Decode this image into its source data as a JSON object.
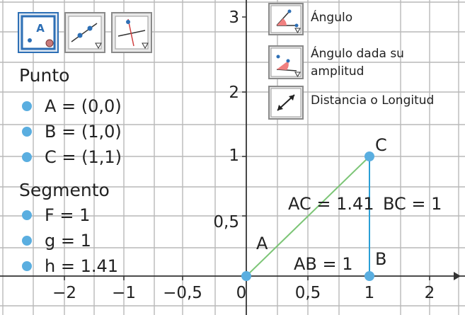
{
  "algebra": {
    "groups": [
      {
        "title": "Punto",
        "items": [
          "A = (0,0)",
          "B = (1,0)",
          "C = (1,1)"
        ]
      },
      {
        "title": "Segmento",
        "items": [
          "F = 1",
          "g = 1",
          "h = 1.41"
        ]
      }
    ]
  },
  "toolbar": {
    "tools": [
      {
        "name": "new-point-tool",
        "icon": "point-A-icon",
        "label": "A",
        "active": true
      },
      {
        "name": "line-tool",
        "icon": "line-through-points-icon",
        "active": false
      },
      {
        "name": "perpendicular-tool",
        "icon": "perpendicular-line-icon",
        "active": false
      }
    ]
  },
  "measure_menu": {
    "items": [
      {
        "name": "angle-tool",
        "icon": "angle-icon",
        "label": "Ángulo"
      },
      {
        "name": "angle-given-size-tool",
        "icon": "angle-given-size-icon",
        "label_lines": [
          "Ángulo dada su",
          "amplitud"
        ]
      },
      {
        "name": "distance-tool",
        "icon": "distance-icon",
        "label": "Distancia o Longitud"
      }
    ]
  },
  "chart_data": {
    "type": "scatter",
    "x_ticks": [
      "−2",
      "−1",
      "−0,5",
      "0",
      "0,5",
      "1",
      "2"
    ],
    "y_ticks": [
      "0,5",
      "1",
      "2",
      "3"
    ],
    "points": [
      {
        "label": "A",
        "x": 0,
        "y": 0
      },
      {
        "label": "B",
        "x": 1,
        "y": 0
      },
      {
        "label": "C",
        "x": 1,
        "y": 1
      }
    ],
    "segments": [
      {
        "from": "A",
        "to": "C",
        "color": "#7cc576"
      },
      {
        "from": "B",
        "to": "C",
        "color": "#2b9fd6"
      }
    ],
    "measurements": [
      "AC = 1.41",
      "BC = 1",
      "AB = 1"
    ],
    "grid": true,
    "colors": {
      "point": "#5aaee0",
      "grid": "#b9b9b9",
      "axis": "#333333"
    }
  }
}
